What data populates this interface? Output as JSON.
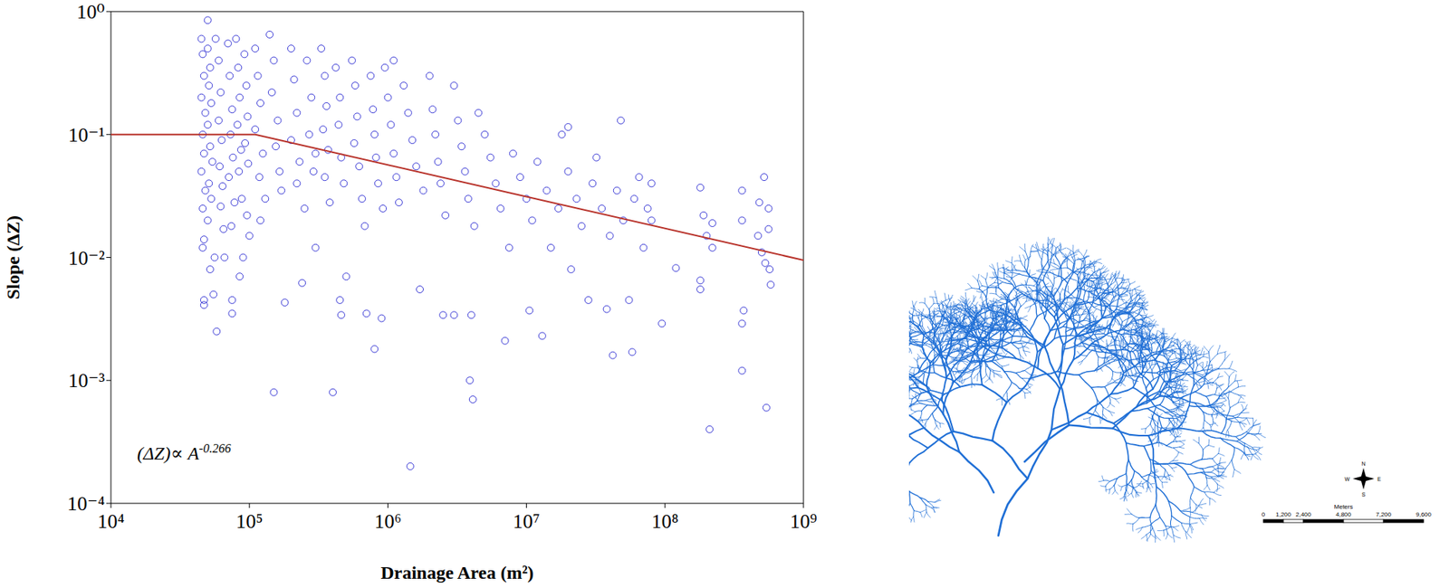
{
  "chart_data": {
    "type": "scatter",
    "x_label": "Drainage Area (m²)",
    "y_label": "Slope (ΔZ)",
    "annotation": {
      "text": "(ΔZ)∝ A",
      "superscript": "-0.266"
    },
    "log": true,
    "grid": false,
    "xlim": [
      10000,
      1000000000
    ],
    "ylim": [
      0.0001,
      1
    ],
    "xticks": [
      {
        "value": 10000,
        "label": "10⁴"
      },
      {
        "value": 100000,
        "label": "10⁵"
      },
      {
        "value": 1000000,
        "label": "10⁶"
      },
      {
        "value": 10000000,
        "label": "10⁷"
      },
      {
        "value": 100000000,
        "label": "10⁸"
      },
      {
        "value": 1000000000,
        "label": "10⁹"
      }
    ],
    "yticks": [
      {
        "value": 0.0001,
        "label": "10⁻⁴"
      },
      {
        "value": 0.001,
        "label": "10⁻³"
      },
      {
        "value": 0.01,
        "label": "10⁻²"
      },
      {
        "value": 0.1,
        "label": "10⁻¹"
      },
      {
        "value": 1,
        "label": "10⁰"
      }
    ],
    "series": [
      {
        "type": "scatter",
        "color": "#3a3ad6",
        "marker": "circle",
        "x": [
          45000.0,
          46000.0,
          47000.0,
          45000.0,
          48000.0,
          46000.0,
          47000.0,
          45000.0,
          48000.0,
          46000.0,
          47000.0,
          46000.0,
          47000.0,
          47000.0,
          50000.0,
          50000.0,
          52000.0,
          51000.0,
          53000.0,
          50000.0,
          52000.0,
          54000.0,
          51000.0,
          53000.0,
          50000.0,
          52000.0,
          56000.0,
          58000.0,
          55000.0,
          57000.0,
          60000.0,
          62000.0,
          60000.0,
          63000.0,
          61000.0,
          64000.0,
          62000.0,
          65000.0,
          66000.0,
          70000.0,
          72000.0,
          75000.0,
          73000.0,
          76000.0,
          71000.0,
          78000.0,
          74000.0,
          75000.0,
          75000.0,
          80000.0,
          83000.0,
          85000.0,
          82000.0,
          87000.0,
          84000.0,
          88000.0,
          85000.0,
          90000.0,
          92000.0,
          95000.0,
          97000.0,
          93000.0,
          98000.0,
          96000.0,
          100000.0,
          110000.0,
          115000.0,
          120000.0,
          110000.0,
          125000.0,
          118000.0,
          130000.0,
          120000.0,
          140000.0,
          150000.0,
          145000.0,
          160000.0,
          155000.0,
          165000.0,
          150000.0,
          170000.0,
          180000.0,
          200000.0,
          210000.0,
          220000.0,
          200000.0,
          230000.0,
          220000.0,
          250000.0,
          240000.0,
          260000.0,
          280000.0,
          270000.0,
          300000.0,
          290000.0,
          300000.0,
          330000.0,
          350000.0,
          360000.0,
          340000.0,
          370000.0,
          350000.0,
          380000.0,
          400000.0,
          420000.0,
          450000.0,
          440000.0,
          460000.0,
          480000.0,
          450000.0,
          460000.0,
          500000.0,
          550000.0,
          580000.0,
          600000.0,
          570000.0,
          620000.0,
          650000.0,
          680000.0,
          700000.0,
          750000.0,
          780000.0,
          800000.0,
          820000.0,
          800000.0,
          850000.0,
          900000.0,
          920000.0,
          950000.0,
          1000000.0,
          1050000.0,
          1100000.0,
          1150000.0,
          1200000.0,
          1100000.0,
          1300000.0,
          1400000.0,
          1500000.0,
          1450000.0,
          1600000.0,
          1800000.0,
          1700000.0,
          2000000.0,
          2100000.0,
          2200000.0,
          2300000.0,
          2500000.0,
          2400000.0,
          2600000.0,
          3000000.0,
          3000000.0,
          3200000.0,
          3400000.0,
          3600000.0,
          3800000.0,
          3900000.0,
          4100000.0,
          4000000.0,
          4200000.0,
          4500000.0,
          5000000.0,
          5500000.0,
          6000000.0,
          6500000.0,
          7000000.0,
          7500000.0,
          8000000.0,
          9000000.0,
          10000000.0,
          10500000.0,
          11000000.0,
          12000000.0,
          13000000.0,
          14000000.0,
          15000000.0,
          17000000.0,
          18000000.0,
          20000000.0,
          20000000.0,
          21000000.0,
          23000000.0,
          25000000.0,
          28000000.0,
          30000000.0,
          32000000.0,
          35000000.0,
          38000000.0,
          40000000.0,
          42000000.0,
          45000000.0,
          48000000.0,
          50000000.0,
          55000000.0,
          58000000.0,
          60000000.0,
          65000000.0,
          70000000.0,
          75000000.0,
          80000000.0,
          80000000.0,
          95000000.0,
          120000000.0,
          180000000.0,
          180000000.0,
          180000000.0,
          190000000.0,
          200000000.0,
          210000000.0,
          220000000.0,
          220000000.0,
          360000000.0,
          360000000.0,
          370000000.0,
          360000000.0,
          360000000.0,
          470000000.0,
          480000000.0,
          500000000.0,
          520000000.0,
          530000000.0,
          540000000.0,
          560000000.0,
          560000000.0,
          570000000.0,
          580000000.0
        ],
        "values": [
          0.6,
          0.45,
          0.3,
          0.2,
          0.15,
          0.1,
          0.07,
          0.05,
          0.035,
          0.025,
          0.014,
          0.012,
          0.0045,
          0.0041,
          0.85,
          0.5,
          0.35,
          0.25,
          0.18,
          0.12,
          0.08,
          0.06,
          0.04,
          0.03,
          0.02,
          0.008,
          0.01,
          0.0025,
          0.005,
          0.6,
          0.4,
          0.22,
          0.13,
          0.09,
          0.055,
          0.038,
          0.026,
          0.017,
          0.01,
          0.55,
          0.3,
          0.16,
          0.1,
          0.065,
          0.045,
          0.028,
          0.018,
          0.0035,
          0.0045,
          0.6,
          0.35,
          0.2,
          0.12,
          0.075,
          0.05,
          0.03,
          0.007,
          0.01,
          0.45,
          0.25,
          0.14,
          0.085,
          0.058,
          0.022,
          0.015,
          0.5,
          0.3,
          0.18,
          0.11,
          0.07,
          0.045,
          0.03,
          0.02,
          0.65,
          0.4,
          0.22,
          0.13,
          0.08,
          0.05,
          0.0008,
          0.035,
          0.0043,
          0.5,
          0.28,
          0.15,
          0.09,
          0.06,
          0.04,
          0.025,
          0.0062,
          0.4,
          0.2,
          0.1,
          0.07,
          0.05,
          0.012,
          0.5,
          0.3,
          0.17,
          0.11,
          0.075,
          0.045,
          0.028,
          0.0008,
          0.35,
          0.2,
          0.12,
          0.065,
          0.04,
          0.0045,
          0.0034,
          0.007,
          0.4,
          0.25,
          0.14,
          0.085,
          0.055,
          0.03,
          0.018,
          0.0035,
          0.3,
          0.16,
          0.1,
          0.065,
          0.0018,
          0.04,
          0.0032,
          0.025,
          0.35,
          0.2,
          0.12,
          0.07,
          0.045,
          0.028,
          0.4,
          0.25,
          0.15,
          0.09,
          0.0002,
          0.055,
          0.035,
          0.0055,
          0.3,
          0.16,
          0.1,
          0.06,
          0.0034,
          0.04,
          0.022,
          0.0034,
          0.25,
          0.13,
          0.08,
          0.05,
          0.03,
          0.001,
          0.0007,
          0.0034,
          0.018,
          0.15,
          0.1,
          0.065,
          0.04,
          0.025,
          0.0021,
          0.012,
          0.07,
          0.045,
          0.03,
          0.0037,
          0.02,
          0.06,
          0.0023,
          0.035,
          0.012,
          0.025,
          0.1,
          0.115,
          0.05,
          0.008,
          0.03,
          0.018,
          0.0045,
          0.04,
          0.065,
          0.025,
          0.0038,
          0.015,
          0.0016,
          0.035,
          0.13,
          0.02,
          0.0045,
          0.0017,
          0.03,
          0.045,
          0.012,
          0.025,
          0.04,
          0.02,
          0.0029,
          0.0082,
          0.037,
          0.0065,
          0.0055,
          0.022,
          0.015,
          0.0004,
          0.012,
          0.019,
          0.035,
          0.02,
          0.0037,
          0.0029,
          0.0012,
          0.015,
          0.028,
          0.011,
          0.045,
          0.009,
          0.0006,
          0.025,
          0.017,
          0.008,
          0.006
        ]
      },
      {
        "type": "line",
        "color": "#b8322a",
        "line_style": "solid",
        "x": [
          10000,
          110000,
          1000000000
        ],
        "values": [
          0.1,
          0.1,
          0.0095
        ]
      }
    ]
  },
  "map": {
    "compass": [
      "N",
      "E",
      "S",
      "W"
    ],
    "scale_bar": {
      "title": "Meters",
      "ticks": [
        0,
        {
          "value": 1200,
          "label": "1,200"
        },
        {
          "value": 2400,
          "label": "2,400"
        },
        {
          "value": 4800,
          "label": "4,800"
        },
        {
          "value": 7200,
          "label": "7,200"
        },
        {
          "value": 9600,
          "label": "9,600"
        }
      ]
    }
  }
}
